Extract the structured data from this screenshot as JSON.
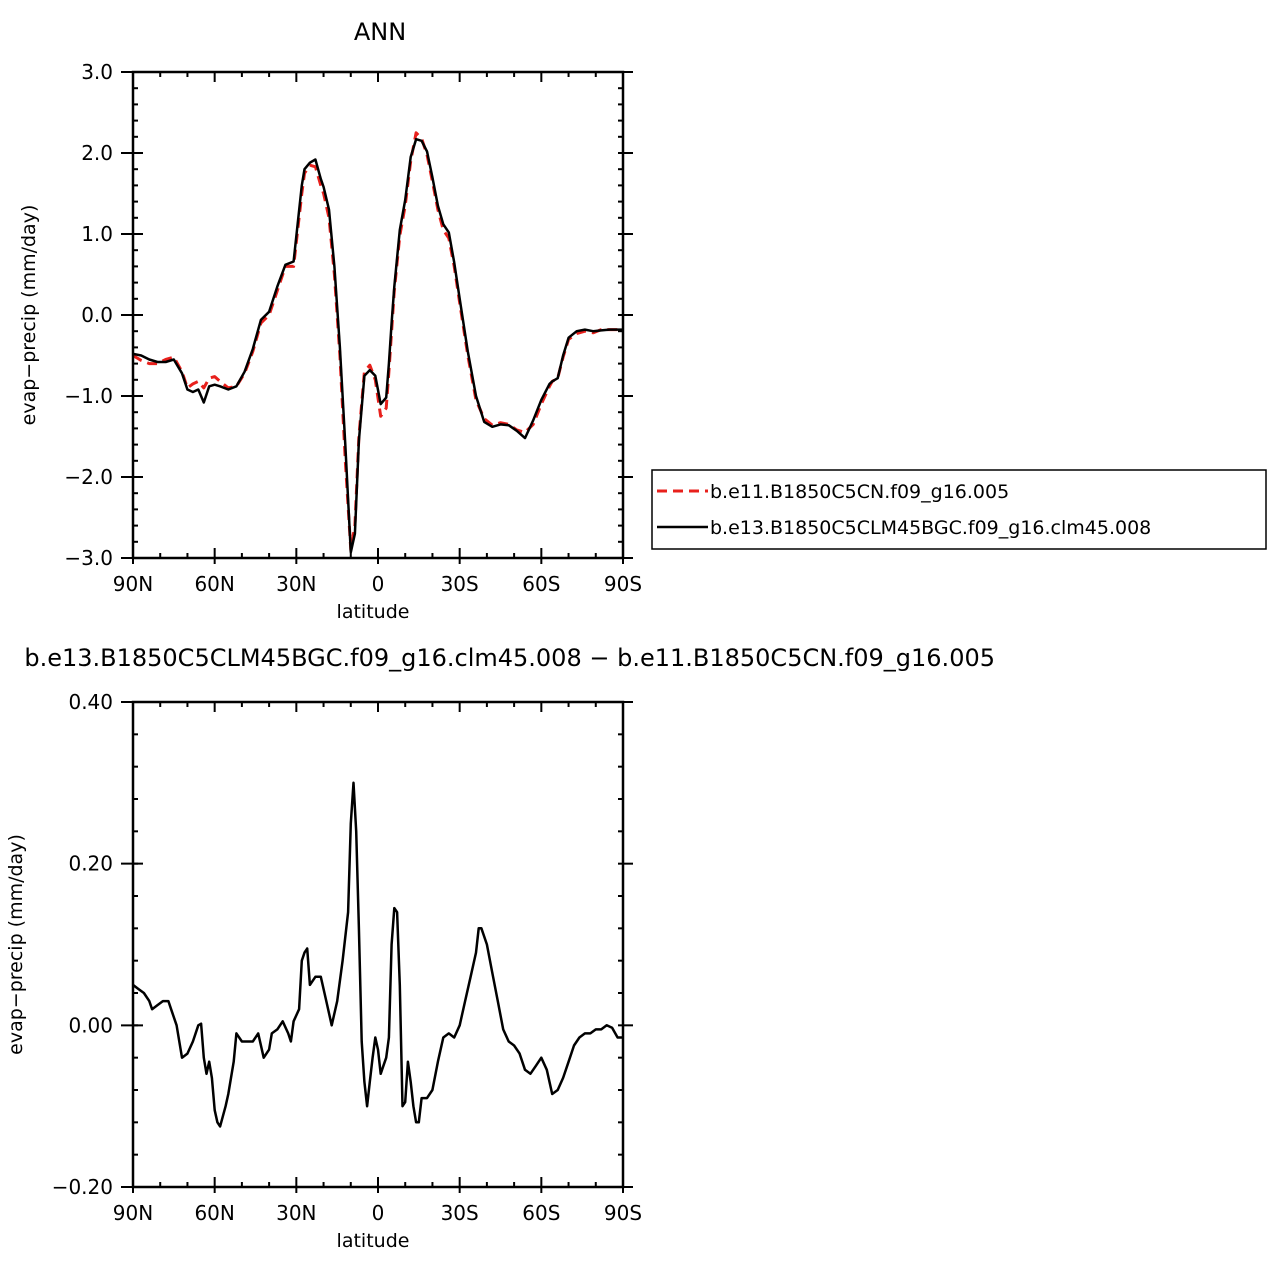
{
  "chart_data": [
    {
      "type": "line",
      "title": "ANN",
      "xlabel": "latitude",
      "ylabel": "evap−precip (mm/day)",
      "xlim": [
        90,
        -90
      ],
      "ylim": [
        -3.0,
        3.0
      ],
      "x_ticks": [
        {
          "value": 90,
          "label": "90N"
        },
        {
          "value": 60,
          "label": "60N"
        },
        {
          "value": 30,
          "label": "30N"
        },
        {
          "value": 0,
          "label": "0"
        },
        {
          "value": -30,
          "label": "30S"
        },
        {
          "value": -60,
          "label": "60S"
        },
        {
          "value": -90,
          "label": "90S"
        }
      ],
      "y_ticks": [
        {
          "value": 3.0,
          "label": "3.0"
        },
        {
          "value": 2.0,
          "label": "2.0"
        },
        {
          "value": 1.0,
          "label": "1.0"
        },
        {
          "value": 0.0,
          "label": "0.0"
        },
        {
          "value": -1.0,
          "label": "−1.0"
        },
        {
          "value": -2.0,
          "label": "−2.0"
        },
        {
          "value": -3.0,
          "label": "−3.0"
        }
      ],
      "legend_position": "right",
      "series": [
        {
          "name": "b.e11.B1850C5CN.f09_g16.005",
          "color": "#e8201c",
          "dash": "dashed",
          "x": [
            90,
            87,
            84,
            81,
            78,
            75,
            72,
            70,
            68,
            66,
            64,
            62,
            60,
            58,
            55,
            52,
            49,
            46,
            43,
            40,
            37,
            34,
            31,
            28,
            27,
            25,
            23,
            21,
            20,
            18,
            16,
            14,
            12,
            10,
            8.5,
            7,
            5,
            3,
            1,
            -1,
            -3,
            -4,
            -5,
            -6,
            -8,
            -10,
            -12,
            -14,
            -16,
            -18,
            -20,
            -22,
            -24,
            -26,
            -28,
            -30,
            -33,
            -36,
            -39,
            -42,
            -45,
            -48,
            -51,
            -54,
            -57,
            -60,
            -63,
            -64,
            -66,
            -68,
            -70,
            -73,
            -76,
            -79,
            -82,
            -85,
            -88,
            -90
          ],
          "y": [
            -0.5,
            -0.56,
            -0.6,
            -0.6,
            -0.55,
            -0.52,
            -0.7,
            -0.9,
            -0.85,
            -0.82,
            -0.9,
            -0.78,
            -0.76,
            -0.82,
            -0.9,
            -0.88,
            -0.72,
            -0.45,
            -0.1,
            0.0,
            0.3,
            0.6,
            0.6,
            1.5,
            1.75,
            1.85,
            1.83,
            1.6,
            1.5,
            1.2,
            0.5,
            -0.5,
            -1.8,
            -2.9,
            -2.6,
            -1.5,
            -0.7,
            -0.62,
            -0.8,
            -1.25,
            -1.15,
            -0.7,
            -0.2,
            0.3,
            0.98,
            1.35,
            1.9,
            2.25,
            2.18,
            1.98,
            1.65,
            1.3,
            1.05,
            0.95,
            0.6,
            0.15,
            -0.5,
            -1.05,
            -1.28,
            -1.36,
            -1.33,
            -1.35,
            -1.42,
            -1.45,
            -1.35,
            -1.1,
            -0.88,
            -0.82,
            -0.78,
            -0.52,
            -0.3,
            -0.23,
            -0.2,
            -0.22,
            -0.18,
            -0.18,
            -0.18,
            -0.17
          ]
        },
        {
          "name": "b.e13.B1850C5CLM45BGC.f09_g16.clm45.008",
          "color": "#000000",
          "dash": "solid",
          "x": [
            90,
            87,
            84,
            81,
            78,
            75,
            72,
            70,
            68,
            66,
            64,
            62,
            60,
            58,
            55,
            52,
            49,
            46,
            43,
            40,
            37,
            34,
            31,
            28,
            27,
            25,
            23,
            21,
            20,
            18,
            16,
            14,
            12,
            10,
            8.5,
            7,
            5,
            3,
            1,
            -1,
            -3,
            -4,
            -5,
            -6,
            -8,
            -10,
            -12,
            -14,
            -16,
            -18,
            -20,
            -22,
            -24,
            -26,
            -28,
            -30,
            -33,
            -36,
            -39,
            -42,
            -45,
            -48,
            -51,
            -54,
            -57,
            -60,
            -63,
            -64,
            -66,
            -68,
            -70,
            -73,
            -76,
            -79,
            -82,
            -85,
            -88,
            -90
          ],
          "y": [
            -0.48,
            -0.5,
            -0.55,
            -0.58,
            -0.58,
            -0.55,
            -0.72,
            -0.92,
            -0.95,
            -0.92,
            -1.08,
            -0.88,
            -0.86,
            -0.88,
            -0.92,
            -0.88,
            -0.7,
            -0.42,
            -0.06,
            0.04,
            0.35,
            0.62,
            0.66,
            1.6,
            1.8,
            1.88,
            1.92,
            1.68,
            1.58,
            1.3,
            0.6,
            -0.4,
            -1.6,
            -2.93,
            -2.7,
            -1.55,
            -0.75,
            -0.68,
            -0.75,
            -1.1,
            -1.02,
            -0.6,
            -0.1,
            0.35,
            1.05,
            1.42,
            1.95,
            2.17,
            2.15,
            2.02,
            1.7,
            1.35,
            1.12,
            1.02,
            0.65,
            0.2,
            -0.45,
            -1.0,
            -1.32,
            -1.38,
            -1.35,
            -1.36,
            -1.43,
            -1.52,
            -1.3,
            -1.05,
            -0.85,
            -0.82,
            -0.78,
            -0.5,
            -0.28,
            -0.2,
            -0.18,
            -0.2,
            -0.19,
            -0.18,
            -0.18,
            -0.18
          ]
        }
      ]
    },
    {
      "type": "line",
      "title": "b.e13.B1850C5CLM45BGC.f09_g16.clm45.008 − b.e11.B1850C5CN.f09_g16.005",
      "xlabel": "latitude",
      "ylabel": "evap−precip (mm/day)",
      "xlim": [
        90,
        -90
      ],
      "ylim": [
        -0.2,
        0.4
      ],
      "x_ticks": [
        {
          "value": 90,
          "label": "90N"
        },
        {
          "value": 60,
          "label": "60N"
        },
        {
          "value": 30,
          "label": "30N"
        },
        {
          "value": 0,
          "label": "0"
        },
        {
          "value": -30,
          "label": "30S"
        },
        {
          "value": -60,
          "label": "60S"
        },
        {
          "value": -90,
          "label": "90S"
        }
      ],
      "y_ticks": [
        {
          "value": 0.4,
          "label": "0.40"
        },
        {
          "value": 0.2,
          "label": "0.20"
        },
        {
          "value": 0.0,
          "label": "0.00"
        },
        {
          "value": -0.2,
          "label": "−0.20"
        }
      ],
      "series": [
        {
          "color": "#000000",
          "dash": "solid",
          "x": [
            90,
            88,
            86,
            84,
            83,
            81,
            79,
            77,
            76,
            74,
            72,
            70,
            68,
            66,
            65,
            64,
            63,
            62,
            61,
            60,
            59,
            58,
            56,
            55,
            53,
            52,
            50,
            48,
            46,
            44,
            42,
            40,
            39,
            37,
            35,
            33,
            32,
            31,
            29,
            28,
            27,
            26,
            25,
            23,
            21,
            19,
            17,
            15,
            13,
            11,
            10,
            9,
            8,
            7,
            6,
            5,
            4,
            3,
            2,
            1,
            0,
            -1,
            -2,
            -3,
            -4,
            -5,
            -6,
            -7,
            -8,
            -9,
            -10,
            -11,
            -12,
            -13,
            -14,
            -15,
            -16,
            -18,
            -20,
            -22,
            -24,
            -26,
            -28,
            -30,
            -32,
            -34,
            -36,
            -37,
            -38,
            -40,
            -42,
            -44,
            -46,
            -48,
            -50,
            -52,
            -54,
            -56,
            -58,
            -60,
            -62,
            -64,
            -66,
            -68,
            -70,
            -72,
            -74,
            -76,
            -78,
            -80,
            -82,
            -84,
            -86,
            -88,
            -90
          ],
          "y": [
            0.05,
            0.045,
            0.04,
            0.03,
            0.02,
            0.025,
            0.03,
            0.03,
            0.02,
            0.0,
            -0.04,
            -0.035,
            -0.02,
            0.0,
            0.002,
            -0.04,
            -0.06,
            -0.045,
            -0.065,
            -0.105,
            -0.12,
            -0.125,
            -0.1,
            -0.085,
            -0.045,
            -0.01,
            -0.02,
            -0.02,
            -0.02,
            -0.01,
            -0.04,
            -0.03,
            -0.01,
            -0.005,
            0.005,
            -0.01,
            -0.02,
            0.005,
            0.02,
            0.08,
            0.09,
            0.095,
            0.05,
            0.06,
            0.06,
            0.03,
            0.0,
            0.03,
            0.08,
            0.14,
            0.25,
            0.3,
            0.24,
            0.12,
            -0.02,
            -0.07,
            -0.1,
            -0.07,
            -0.04,
            -0.015,
            -0.03,
            -0.06,
            -0.05,
            -0.04,
            -0.015,
            0.1,
            0.145,
            0.14,
            0.05,
            -0.1,
            -0.095,
            -0.045,
            -0.07,
            -0.1,
            -0.12,
            -0.12,
            -0.09,
            -0.09,
            -0.08,
            -0.045,
            -0.015,
            -0.01,
            -0.015,
            0.0,
            0.03,
            0.06,
            0.09,
            0.12,
            0.12,
            0.1,
            0.065,
            0.03,
            -0.005,
            -0.02,
            -0.025,
            -0.035,
            -0.055,
            -0.06,
            -0.05,
            -0.04,
            -0.055,
            -0.085,
            -0.08,
            -0.065,
            -0.045,
            -0.025,
            -0.015,
            -0.01,
            -0.01,
            -0.005,
            -0.005,
            0.0,
            -0.003,
            -0.015,
            -0.015
          ]
        }
      ]
    }
  ]
}
